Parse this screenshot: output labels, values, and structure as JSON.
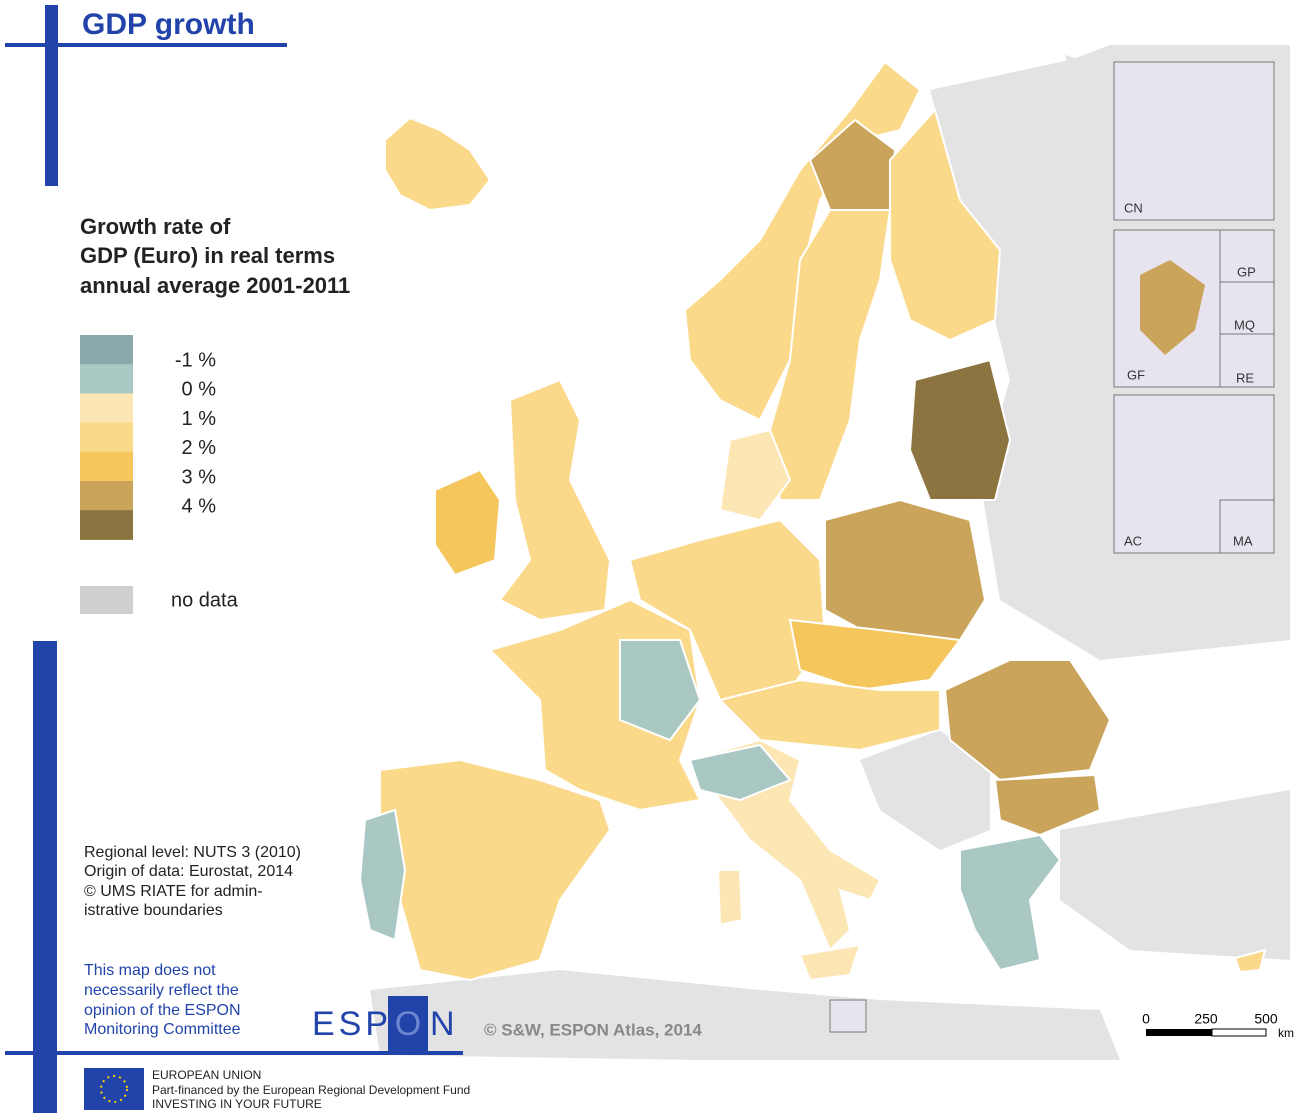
{
  "header": {
    "title": "GDP growth"
  },
  "legend": {
    "title_lines": [
      "Growth rate of",
      "GDP (Euro) in real terms",
      "annual average 2001-2011"
    ],
    "class_colors": [
      "#8aa8ab",
      "#a9c8c4",
      "#fce6b4",
      "#fbd98a",
      "#f5c65c",
      "#c9a45a",
      "#8c7440"
    ],
    "break_labels": [
      "-1 %",
      "0 %",
      "1 %",
      "2 %",
      "3 %",
      "4 %"
    ],
    "no_data_color": "#cfcfcf",
    "no_data_label": "no data"
  },
  "notes": [
    "Regional level: NUTS 3 (2010)",
    "Origin of data: Eurostat, 2014",
    "© UMS RIATE for admin-",
    "istrative boundaries"
  ],
  "disclaimer": [
    "This map does not",
    "necessarily reflect the",
    "opinion of the ESPON",
    "Monitoring Committee"
  ],
  "logo": {
    "left": "ESP",
    "middle": "O",
    "right": "N"
  },
  "copyright": "© S&W, ESPON Atlas, 2014",
  "insets": [
    "CN",
    "GP",
    "MQ",
    "GF",
    "RE",
    "AC",
    "MA"
  ],
  "scale_bar": {
    "labels": [
      "0",
      "250",
      "500"
    ],
    "unit": "km"
  },
  "footer": [
    "EUROPEAN UNION",
    "Part-financed by the European Regional Development Fund",
    "INVESTING IN YOUR FUTURE"
  ]
}
